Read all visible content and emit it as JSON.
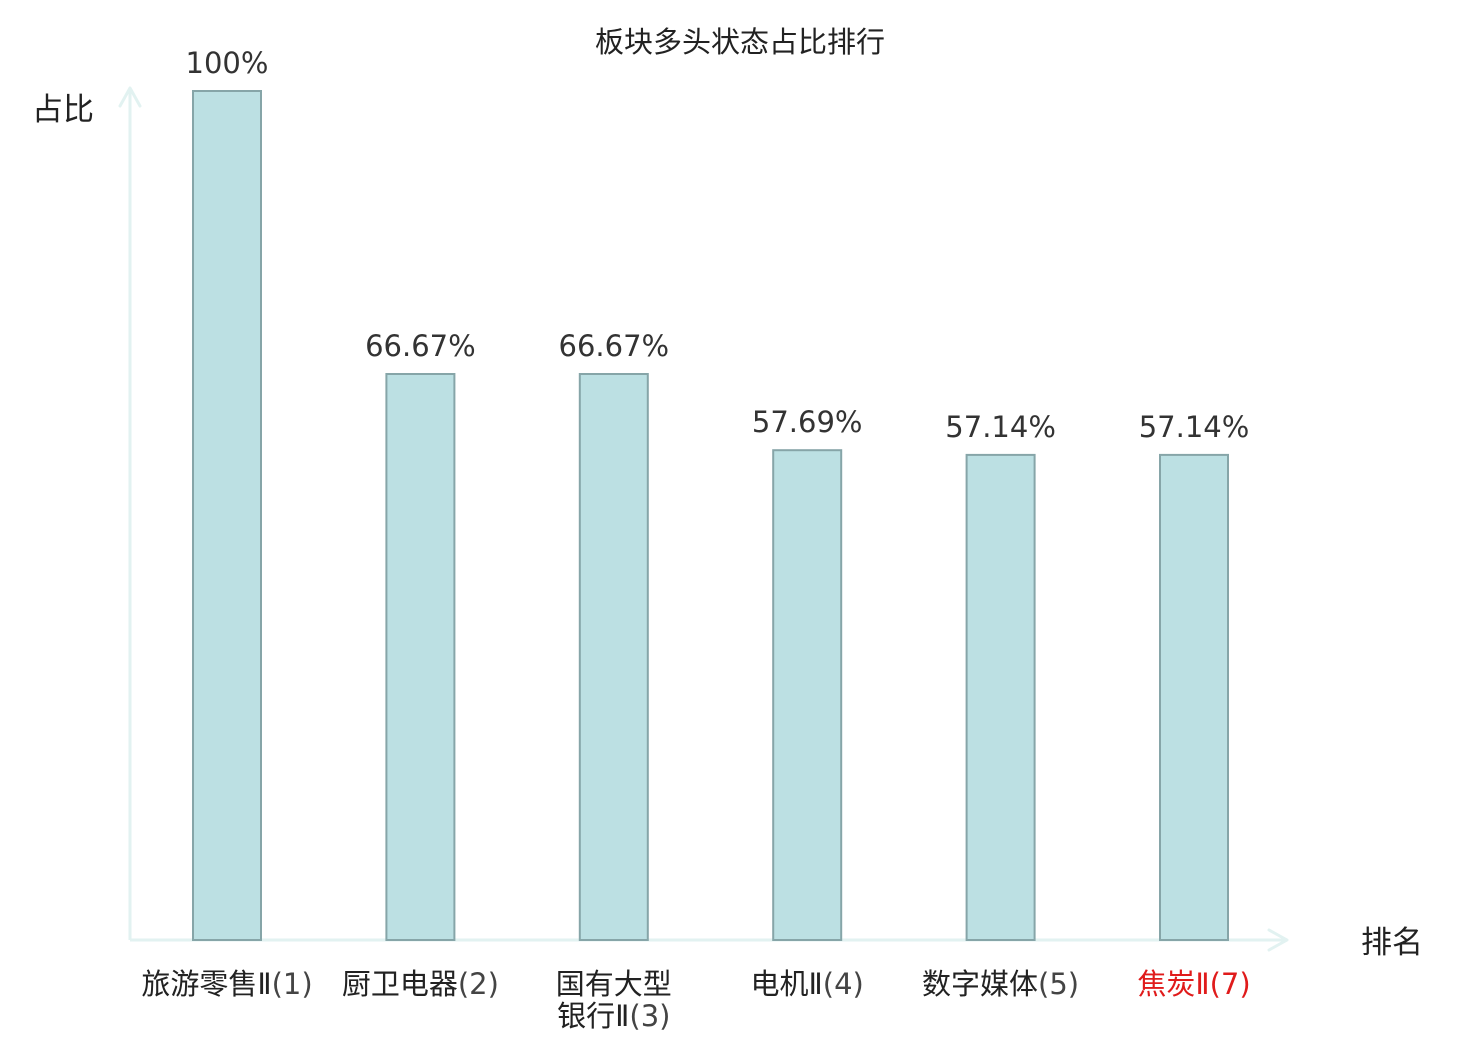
{
  "chart_data": {
    "type": "bar",
    "title": "板块多头状态占比排行",
    "ylabel": "占比",
    "xlabel": "排名",
    "ylim": [
      0,
      100
    ],
    "grid": false,
    "categories": [
      {
        "name": "旅游零售",
        "suffix": "Ⅱ",
        "rank": "(1)",
        "highlight": false
      },
      {
        "name": "厨卫电器",
        "suffix": "",
        "rank": "(2)",
        "highlight": false
      },
      {
        "name": "国有大型",
        "suffix": "银行Ⅱ",
        "rank": "(3)",
        "highlight": false
      },
      {
        "name": "电机",
        "suffix": "Ⅱ",
        "rank": "(4)",
        "highlight": false
      },
      {
        "name": "数字媒体",
        "suffix": "",
        "rank": "(5)",
        "highlight": false
      },
      {
        "name": "焦炭",
        "suffix": "Ⅱ",
        "rank": "(7)",
        "highlight": true
      }
    ],
    "values": [
      100,
      66.67,
      66.67,
      57.69,
      57.14,
      57.14
    ],
    "value_labels": [
      "100%",
      "66.67%",
      "66.67%",
      "57.69%",
      "57.14%",
      "57.14%"
    ]
  },
  "colors": {
    "bar_fill": "#bce0e3",
    "bar_stroke": "#86a5a8",
    "axis": "#e2f2f1",
    "text": "#222222",
    "value_text": "#333333",
    "rank_text": "#444444",
    "highlight": "#e01b1b",
    "background": "#ffffff"
  }
}
